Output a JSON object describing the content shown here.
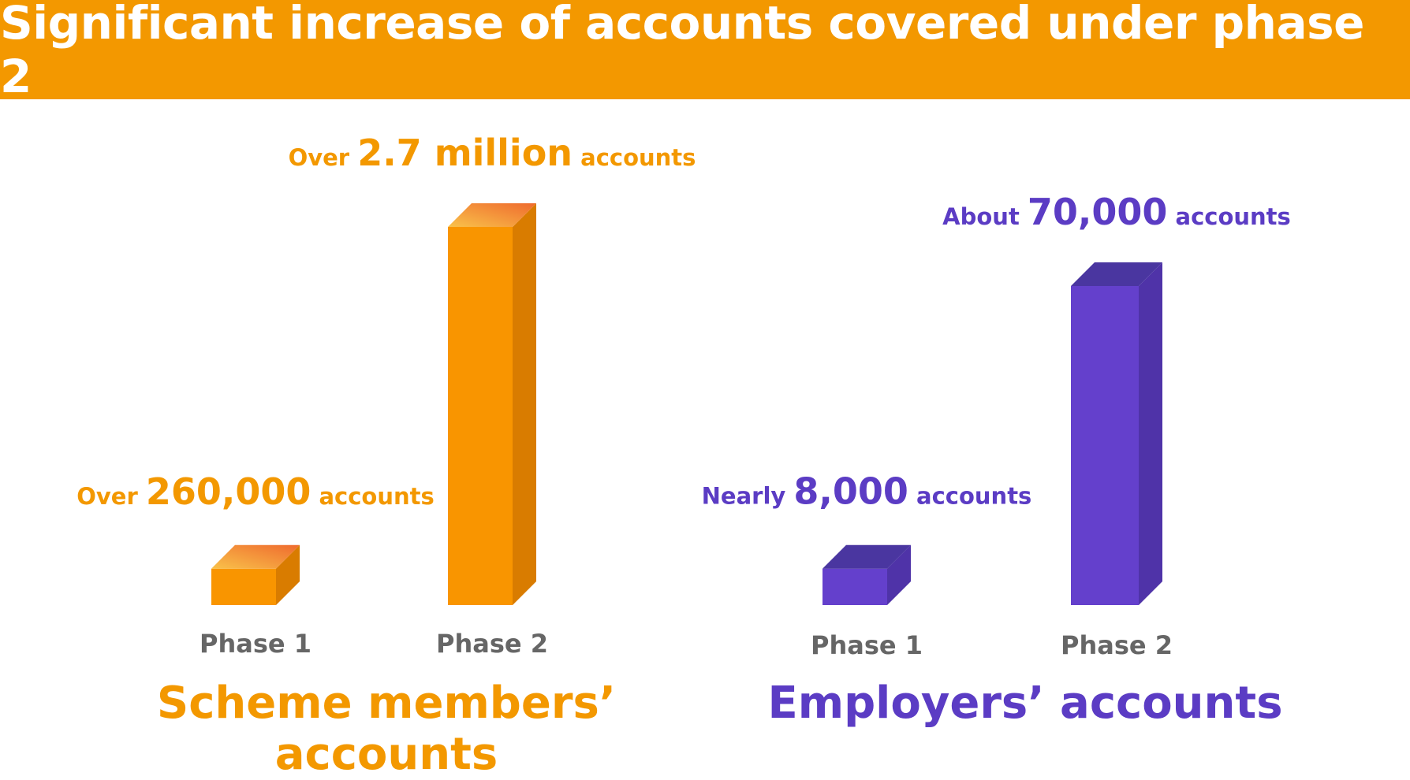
{
  "title": "Significant increase of accounts covered under phase 2",
  "colors": {
    "banner": "#F39800",
    "orange_front": "#F99500",
    "orange_side": "#D97C00",
    "orange_top_a": "#F9C24A",
    "orange_top_b": "#EF6A2E",
    "purple_front": "#6440CC",
    "purple_side": "#4F33A8",
    "purple_top": "#4A36A0",
    "orange_text": "#F39800",
    "purple_text": "#5B3CC4"
  },
  "chart_data": [
    {
      "type": "bar",
      "title": "Scheme members’ accounts",
      "categories": [
        "Phase 1",
        "Phase 2"
      ],
      "values": [
        260000,
        2700000
      ],
      "data_labels": [
        {
          "prefix": "Over",
          "value": "260,000",
          "suffix": "accounts"
        },
        {
          "prefix": "Over",
          "value": "2.7 million",
          "suffix": "accounts"
        }
      ],
      "color": "orange"
    },
    {
      "type": "bar",
      "title": "Employers’ accounts",
      "categories": [
        "Phase 1",
        "Phase 2"
      ],
      "values": [
        8000,
        70000
      ],
      "data_labels": [
        {
          "prefix": "Nearly",
          "value": "8,000",
          "suffix": "accounts"
        },
        {
          "prefix": "About",
          "value": "70,000",
          "suffix": "accounts"
        }
      ],
      "color": "purple"
    }
  ]
}
